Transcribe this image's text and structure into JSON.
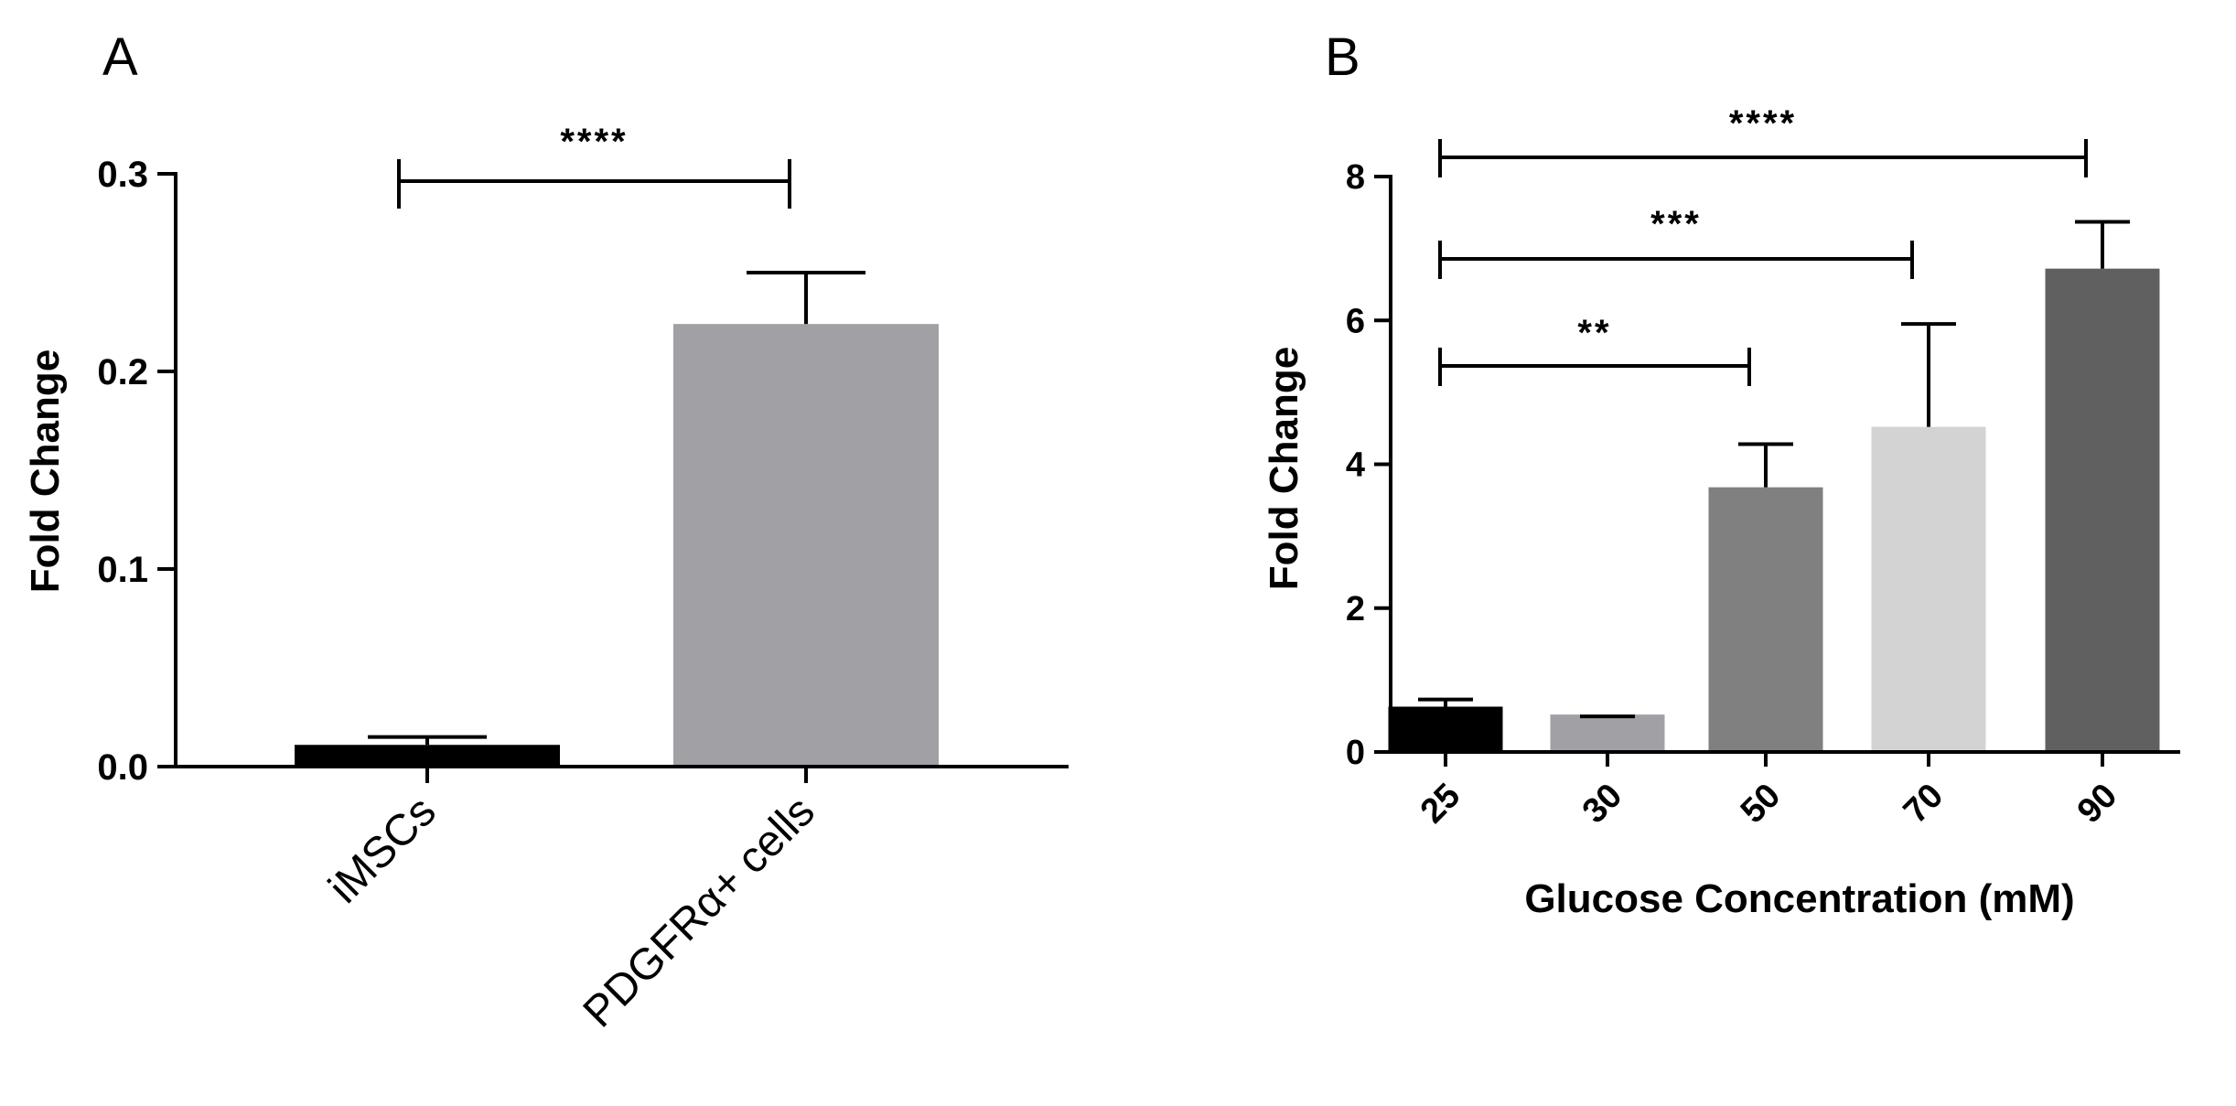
{
  "chart_data": [
    {
      "panel": "A",
      "type": "bar",
      "ylabel": "Fold Change",
      "xlabel": "",
      "ylim": [
        0,
        0.3
      ],
      "yticks": [
        "0.0",
        "0.1",
        "0.2",
        "0.3"
      ],
      "categories": [
        "iMSCs",
        "PDGFRα+ cells"
      ],
      "values": [
        0.011,
        0.224
      ],
      "errors": [
        0.004,
        0.026
      ],
      "colors": [
        "#000000",
        "#a0a0a5"
      ],
      "significance": [
        {
          "from": "iMSCs",
          "to": "PDGFRα+ cells",
          "label": "****"
        }
      ]
    },
    {
      "panel": "B",
      "type": "bar",
      "ylabel": "Fold  Change",
      "xlabel": "Glucose Concentration (mM)",
      "ylim": [
        0,
        8
      ],
      "yticks": [
        "0",
        "2",
        "4",
        "6",
        "8"
      ],
      "categories": [
        "25",
        "30",
        "50",
        "70",
        "90"
      ],
      "values": [
        0.63,
        0.52,
        3.68,
        4.52,
        6.72
      ],
      "errors": [
        0.1,
        0.0,
        0.6,
        1.43,
        0.65
      ],
      "colors": [
        "#000000",
        "#a0a0a5",
        "#808080",
        "#d3d3d3",
        "#606060"
      ],
      "significance": [
        {
          "from": "25",
          "to": "50",
          "label": "**"
        },
        {
          "from": "25",
          "to": "70",
          "label": "***"
        },
        {
          "from": "25",
          "to": "90",
          "label": "****"
        }
      ]
    }
  ]
}
